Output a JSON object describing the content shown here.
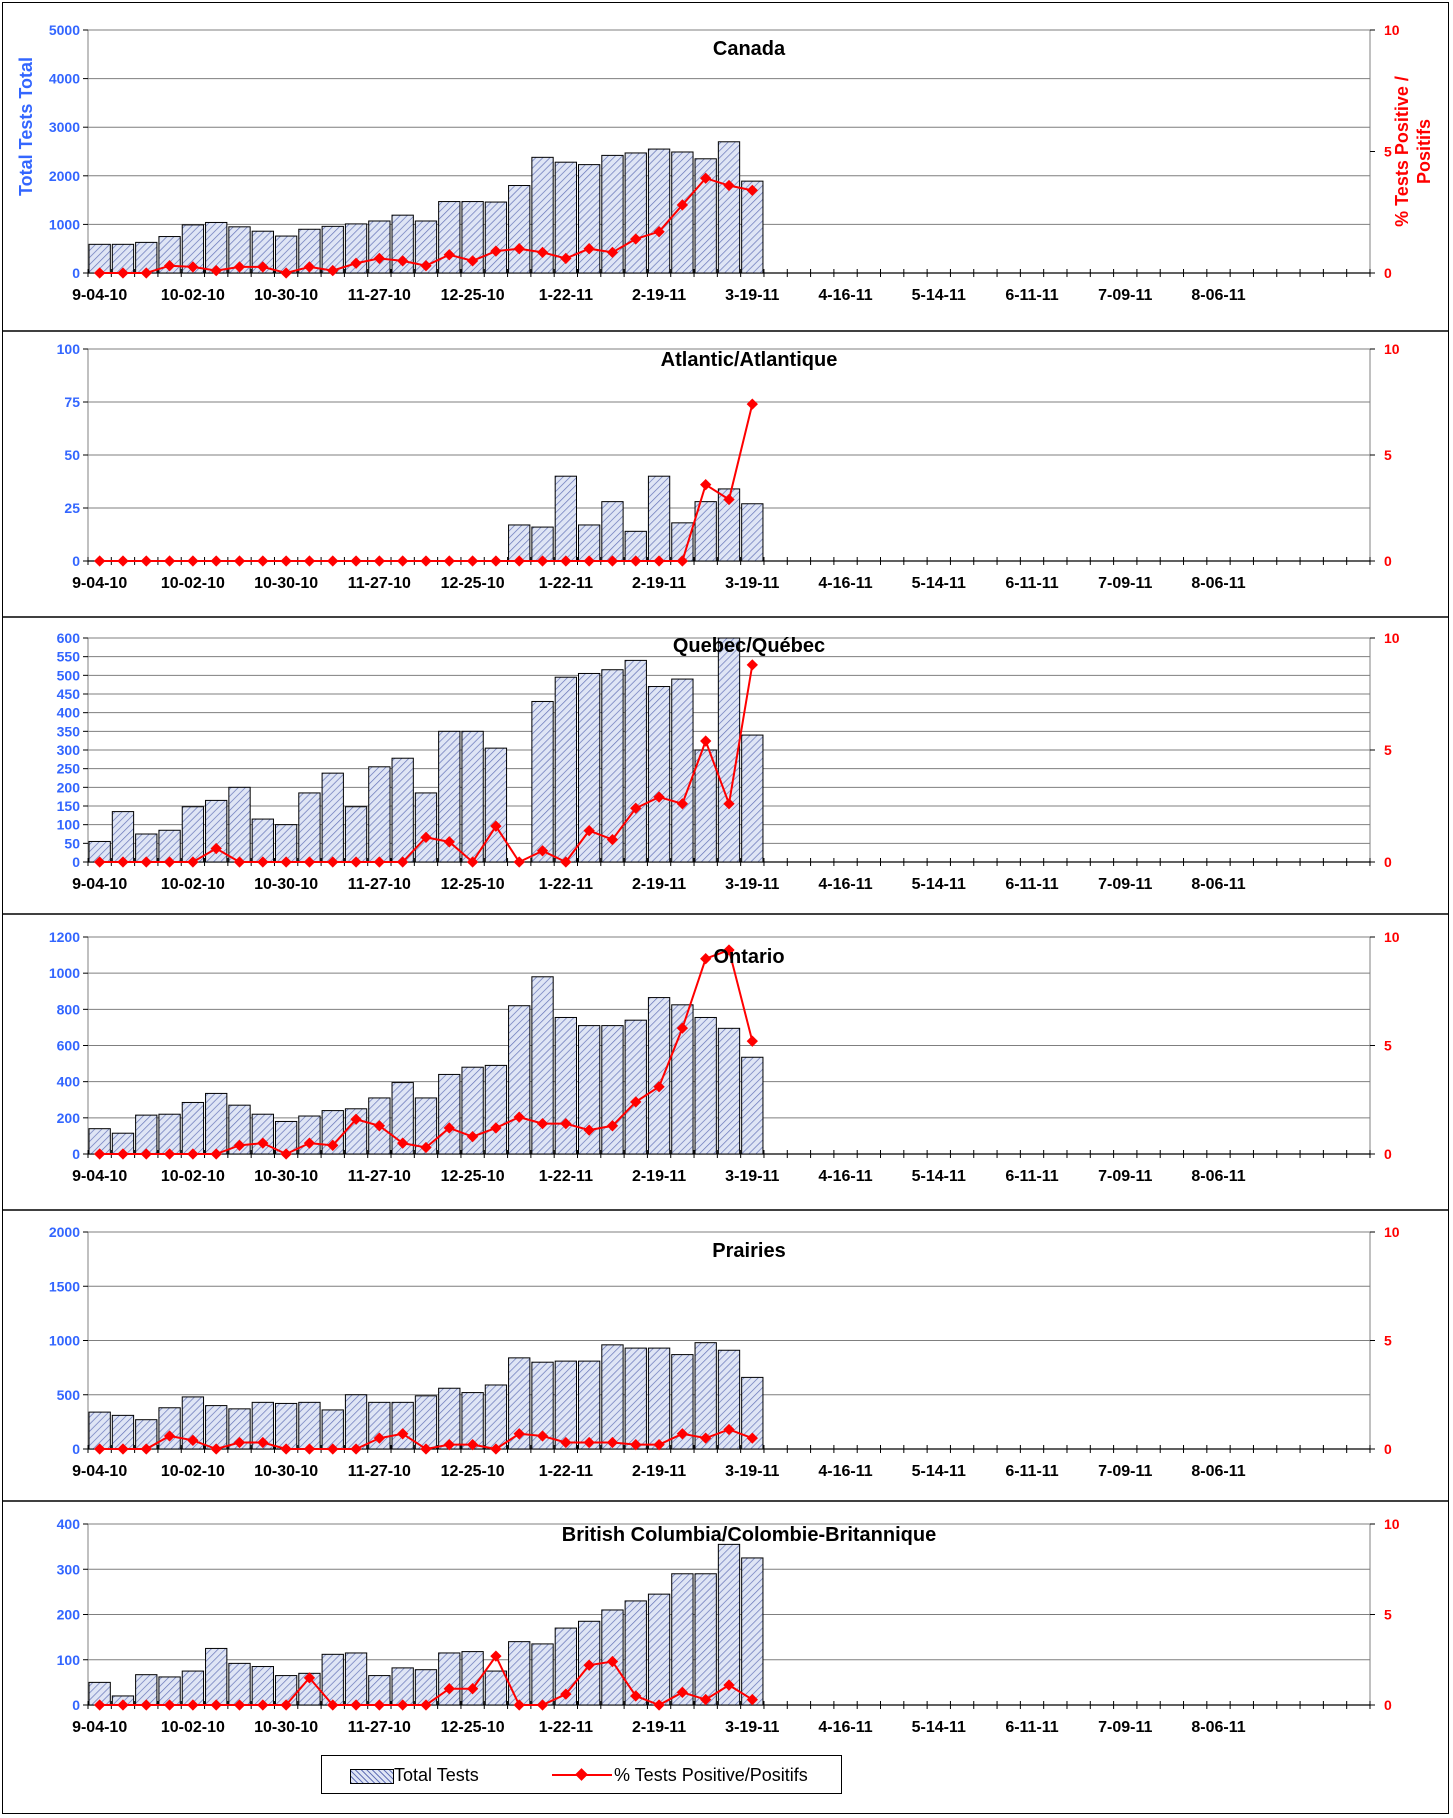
{
  "legend": {
    "bar_label": "Total Tests",
    "line_label": "% Tests Positive/Positifs"
  },
  "colors": {
    "bars": "#6674b8",
    "bar_fill": "#dfe5f5",
    "line": "#ff0000",
    "left_axis_text": "#3366ff",
    "right_axis_text": "#ff0000"
  },
  "x_tick_labels": [
    "9-04-10",
    "10-02-10",
    "10-30-10",
    "11-27-10",
    "12-25-10",
    "1-22-11",
    "2-19-11",
    "3-19-11",
    "4-16-11",
    "5-14-11",
    "6-11-11",
    "7-09-11",
    "8-06-11"
  ],
  "chart_data": [
    {
      "type": "bar",
      "title": "Canada",
      "ylabel": "Total Tests Total",
      "y2label": "% Tests Positive / Positifs",
      "ylim": [
        0,
        5000
      ],
      "yticks": [
        0,
        1000,
        2000,
        3000,
        4000,
        5000
      ],
      "y2lim": [
        0,
        10
      ],
      "y2ticks": [
        0,
        5,
        10
      ],
      "total_tests": [
        590,
        590,
        630,
        750,
        990,
        1040,
        950,
        860,
        760,
        900,
        960,
        1010,
        1070,
        1190,
        1070,
        1470,
        1470,
        1460,
        1800,
        2380,
        2280,
        2230,
        2420,
        2470,
        2550,
        2490,
        2350,
        2700,
        1890
      ],
      "pct_positive": [
        0,
        0,
        0,
        0.3,
        0.25,
        0.1,
        0.25,
        0.25,
        0,
        0.25,
        0.1,
        0.4,
        0.6,
        0.5,
        0.3,
        0.75,
        0.5,
        0.9,
        1.0,
        0.85,
        0.6,
        1.0,
        0.85,
        1.4,
        1.7,
        2.8,
        3.9,
        3.6,
        3.4
      ],
      "grid": true
    },
    {
      "type": "bar",
      "title": "Atlantic/Atlantique",
      "ylim": [
        0,
        100
      ],
      "yticks": [
        0,
        25,
        50,
        75,
        100
      ],
      "y2lim": [
        0,
        10
      ],
      "y2ticks": [
        0,
        5,
        10
      ],
      "total_tests": [
        0,
        0,
        0,
        0,
        0,
        0,
        0,
        0,
        0,
        0,
        0,
        0,
        0,
        0,
        0,
        0,
        0,
        0,
        17,
        16,
        40,
        17,
        28,
        14,
        40,
        18,
        28,
        34,
        27
      ],
      "pct_positive": [
        0,
        0,
        0,
        0,
        0,
        0,
        0,
        0,
        0,
        0,
        0,
        0,
        0,
        0,
        0,
        0,
        0,
        0,
        0,
        0,
        0,
        0,
        0,
        0,
        0,
        0,
        3.6,
        2.9,
        7.4
      ],
      "grid": true
    },
    {
      "type": "bar",
      "title": "Quebec/Québec",
      "ylim": [
        0,
        600
      ],
      "yticks": [
        0,
        50,
        100,
        150,
        200,
        250,
        300,
        350,
        400,
        450,
        500,
        550,
        600
      ],
      "y2lim": [
        0,
        10
      ],
      "y2ticks": [
        0,
        5,
        10
      ],
      "total_tests": [
        55,
        135,
        75,
        85,
        148,
        165,
        200,
        115,
        100,
        185,
        238,
        148,
        255,
        278,
        185,
        350,
        350,
        305,
        0,
        430,
        495,
        505,
        515,
        540,
        470,
        490,
        300,
        610,
        340
      ],
      "pct_positive": [
        0,
        0,
        0,
        0,
        0,
        0.6,
        0,
        0,
        0,
        0,
        0,
        0,
        0,
        0,
        1.1,
        0.9,
        0,
        1.6,
        0,
        0.5,
        0,
        1.4,
        1.0,
        2.4,
        2.9,
        2.6,
        5.4,
        2.6,
        8.8
      ],
      "grid": true
    },
    {
      "type": "bar",
      "title": "Ontario",
      "ylim": [
        0,
        1200
      ],
      "yticks": [
        0,
        200,
        400,
        600,
        800,
        1000,
        1200
      ],
      "y2lim": [
        0,
        10
      ],
      "y2ticks": [
        0,
        5,
        10
      ],
      "total_tests": [
        140,
        115,
        215,
        220,
        285,
        335,
        270,
        220,
        180,
        210,
        240,
        250,
        310,
        395,
        310,
        440,
        480,
        490,
        820,
        980,
        755,
        710,
        710,
        740,
        865,
        825,
        755,
        695,
        535
      ],
      "pct_positive": [
        0,
        0,
        0,
        0,
        0,
        0,
        0.4,
        0.5,
        0,
        0.5,
        0.4,
        1.6,
        1.3,
        0.5,
        0.3,
        1.2,
        0.8,
        1.2,
        1.7,
        1.4,
        1.4,
        1.1,
        1.3,
        2.4,
        3.1,
        5.8,
        9.0,
        9.4,
        5.2
      ],
      "grid": true
    },
    {
      "type": "bar",
      "title": "Prairies",
      "ylim": [
        0,
        2000
      ],
      "yticks": [
        0,
        500,
        1000,
        1500,
        2000
      ],
      "y2lim": [
        0,
        10
      ],
      "y2ticks": [
        0,
        5,
        10
      ],
      "total_tests": [
        340,
        310,
        270,
        380,
        480,
        400,
        370,
        430,
        420,
        430,
        360,
        500,
        430,
        430,
        490,
        560,
        520,
        590,
        840,
        800,
        810,
        810,
        960,
        930,
        930,
        870,
        980,
        910,
        660
      ],
      "pct_positive": [
        0,
        0,
        0,
        0.6,
        0.4,
        0,
        0.3,
        0.3,
        0,
        0,
        0,
        0,
        0.5,
        0.7,
        0,
        0.2,
        0.2,
        0,
        0.7,
        0.6,
        0.3,
        0.3,
        0.3,
        0.2,
        0.2,
        0.7,
        0.5,
        0.9,
        0.5
      ],
      "grid": true
    },
    {
      "type": "bar",
      "title": "British Columbia/Colombie-Britannique",
      "ylim": [
        0,
        400
      ],
      "yticks": [
        0,
        100,
        200,
        300,
        400
      ],
      "y2lim": [
        0,
        10
      ],
      "y2ticks": [
        0,
        5,
        10
      ],
      "total_tests": [
        50,
        20,
        67,
        62,
        75,
        125,
        92,
        85,
        65,
        70,
        112,
        115,
        65,
        82,
        78,
        115,
        118,
        75,
        140,
        135,
        170,
        185,
        210,
        230,
        245,
        290,
        290,
        355,
        325
      ],
      "pct_positive": [
        0,
        0,
        0,
        0,
        0,
        0,
        0,
        0,
        0,
        1.5,
        0,
        0,
        0,
        0,
        0,
        0.9,
        0.9,
        2.7,
        0,
        0,
        0.6,
        2.2,
        2.4,
        0.5,
        0,
        0.7,
        0.3,
        1.1,
        0.3
      ],
      "grid": true
    }
  ]
}
